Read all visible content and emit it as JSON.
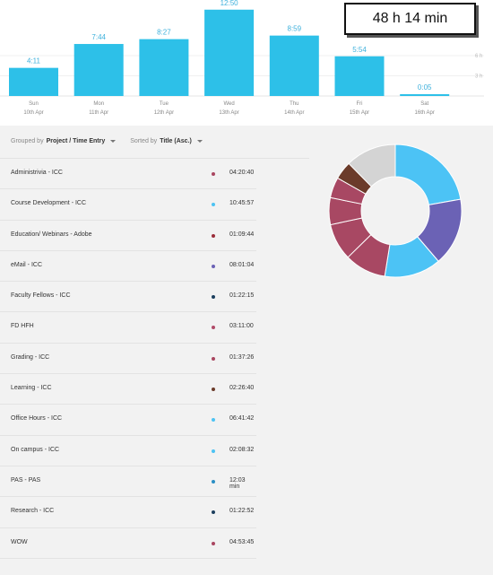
{
  "total_time": "48 h 14 min",
  "chart_data": {
    "type": "bar",
    "categories": [
      "Sun",
      "Mon",
      "Tue",
      "Wed",
      "Thu",
      "Fri",
      "Sat"
    ],
    "dates": [
      "10th Apr",
      "11th Apr",
      "12th Apr",
      "13th Apr",
      "14th Apr",
      "15th Apr",
      "16th Apr"
    ],
    "labels": [
      "4:11",
      "7:44",
      "8:27",
      "12:50",
      "8:59",
      "5:54",
      "0:05"
    ],
    "values": [
      4.18,
      7.73,
      8.45,
      12.83,
      8.98,
      5.9,
      0.08
    ],
    "ylim": [
      0,
      14
    ],
    "y_ticks": [
      "6 h",
      "3 h"
    ],
    "y_tick_values": [
      6,
      3
    ],
    "color": "#2dc0e8"
  },
  "controls": {
    "group_prefix": "Grouped by",
    "group_value": "Project / Time Entry",
    "sort_prefix": "Sorted by",
    "sort_value": "Title (Asc.)"
  },
  "entries": [
    {
      "title": "Administrivia - ICC",
      "duration": "04:20:40",
      "color": "#a94660"
    },
    {
      "title": "Course Development - ICC",
      "duration": "10:45:57",
      "color": "#4dc3f3"
    },
    {
      "title": "Education/ Webinars - Adobe",
      "duration": "01:09:44",
      "color": "#9b2d3a"
    },
    {
      "title": "eMail - ICC",
      "duration": "08:01:04",
      "color": "#6b62b5"
    },
    {
      "title": "Faculty Fellows - ICC",
      "duration": "01:22:15",
      "color": "#1c3f5e"
    },
    {
      "title": "FD HFH",
      "duration": "03:11:00",
      "color": "#b04a68"
    },
    {
      "title": "Grading - ICC",
      "duration": "01:37:26",
      "color": "#a94660"
    },
    {
      "title": "Learning - ICC",
      "duration": "02:26:40",
      "color": "#6b3b2a"
    },
    {
      "title": "Office Hours - ICC",
      "duration": "06:41:42",
      "color": "#4dc3f3"
    },
    {
      "title": "On campus - ICC",
      "duration": "02:08:32",
      "color": "#4dc3f3"
    },
    {
      "title": "PAS - PAS",
      "duration": "12:03 min",
      "color": "#2a8fc4"
    },
    {
      "title": "Research - ICC",
      "duration": "01:22:52",
      "color": "#1c3f5e"
    },
    {
      "title": "WOW",
      "duration": "04:53:45",
      "color": "#a94660"
    }
  ],
  "donut": [
    {
      "value": 10.77,
      "color": "#4cc3f5"
    },
    {
      "value": 8.02,
      "color": "#6b62b5"
    },
    {
      "value": 6.7,
      "color": "#4cc3f5"
    },
    {
      "value": 4.9,
      "color": "#a84863"
    },
    {
      "value": 4.35,
      "color": "#a84863"
    },
    {
      "value": 3.18,
      "color": "#a84863"
    },
    {
      "value": 2.44,
      "color": "#a84863"
    },
    {
      "value": 2.14,
      "color": "#6b3b2a"
    },
    {
      "value": 6.0,
      "color": "#d4d4d4"
    }
  ]
}
